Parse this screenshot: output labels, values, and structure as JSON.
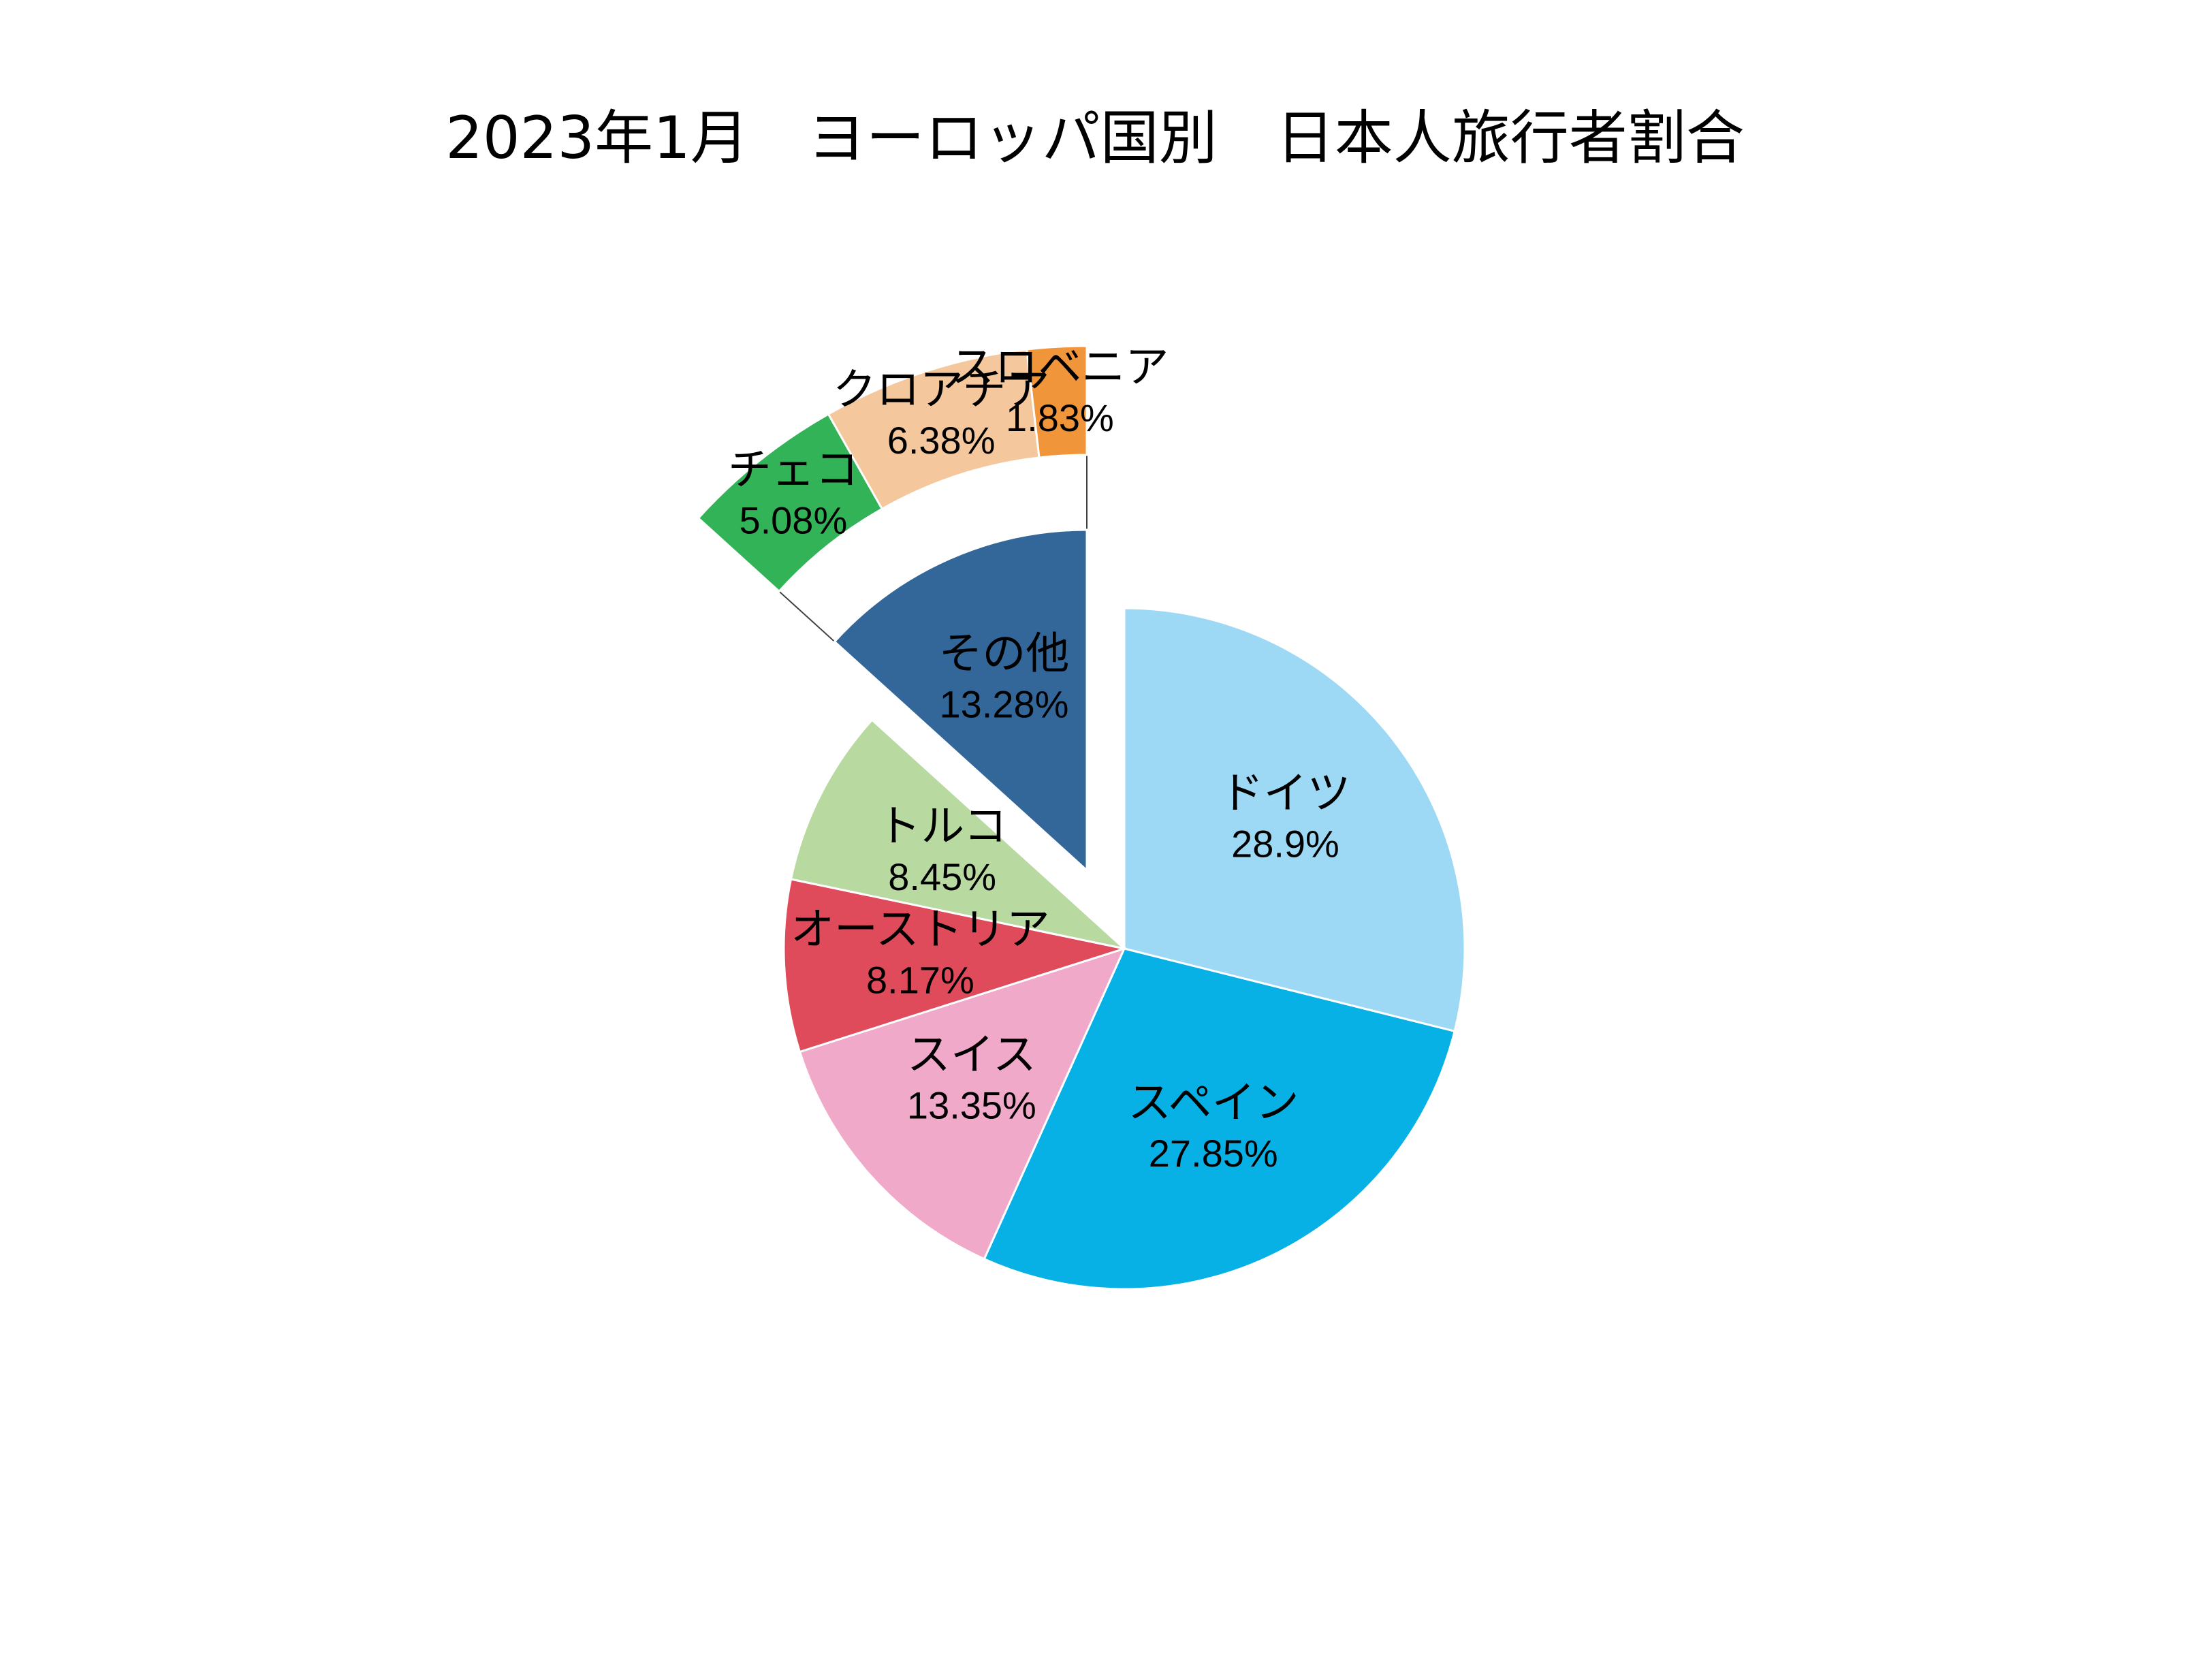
{
  "chart_data": {
    "type": "pie",
    "subtype": "pie-of-pie (bar-of-pie style, other segment expanded as arc)",
    "title": "2023年1月　ヨーロッパ国別　日本人旅行者割合",
    "slices": [
      {
        "label": "ドイツ",
        "value_label": "28.9%",
        "value": 28.9,
        "color": "#9dd9f5"
      },
      {
        "label": "スペイン",
        "value_label": "27.85%",
        "value": 27.85,
        "color": "#07b1e6"
      },
      {
        "label": "スイス",
        "value_label": "13.35%",
        "value": 13.35,
        "color": "#f0a9c8"
      },
      {
        "label": "オーストリア",
        "value_label": "8.17%",
        "value": 8.17,
        "color": "#e04b5c"
      },
      {
        "label": "トルコ",
        "value_label": "8.45%",
        "value": 8.45,
        "color": "#b8d9a0"
      },
      {
        "label": "その他",
        "value_label": "13.28%",
        "value": 13.28,
        "color": "#336699",
        "exploded": true
      }
    ],
    "other_breakdown": [
      {
        "label": "チェコ",
        "value_label": "5.08%",
        "value": 5.08,
        "color": "#33b358"
      },
      {
        "label": "クロアチア",
        "value_label": "6.38%",
        "value": 6.38,
        "color": "#f4c79c"
      },
      {
        "label": "スロベニア",
        "value_label": "1.83%",
        "value": 1.83,
        "color": "#f0953a"
      }
    ],
    "legend": "none",
    "data_labels": "inside"
  }
}
